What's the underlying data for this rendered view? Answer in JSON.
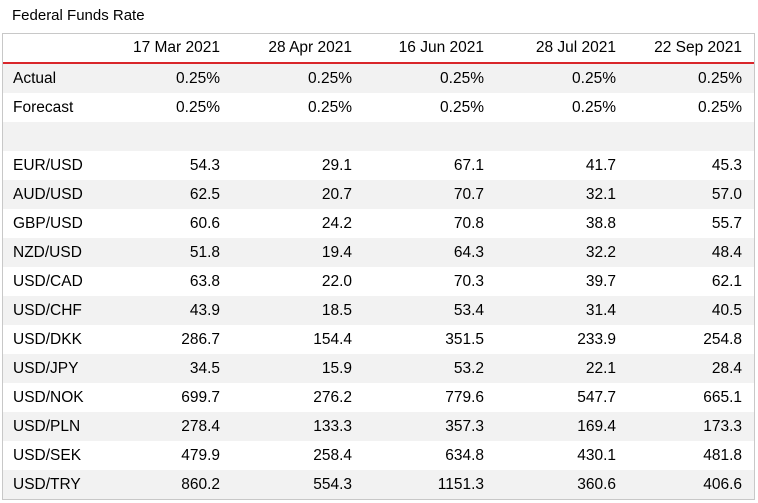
{
  "title": "Federal Funds Rate",
  "columns": [
    "17 Mar 2021",
    "28 Apr 2021",
    "16 Jun 2021",
    "28 Jul 2021",
    "22 Sep 2021"
  ],
  "rate_rows": [
    {
      "label": "Actual",
      "values": [
        "0.25%",
        "0.25%",
        "0.25%",
        "0.25%",
        "0.25%"
      ]
    },
    {
      "label": "Forecast",
      "values": [
        "0.25%",
        "0.25%",
        "0.25%",
        "0.25%",
        "0.25%"
      ]
    }
  ],
  "pair_rows": [
    {
      "label": "EUR/USD",
      "values": [
        "54.3",
        "29.1",
        "67.1",
        "41.7",
        "45.3"
      ]
    },
    {
      "label": "AUD/USD",
      "values": [
        "62.5",
        "20.7",
        "70.7",
        "32.1",
        "57.0"
      ]
    },
    {
      "label": "GBP/USD",
      "values": [
        "60.6",
        "24.2",
        "70.8",
        "38.8",
        "55.7"
      ]
    },
    {
      "label": "NZD/USD",
      "values": [
        "51.8",
        "19.4",
        "64.3",
        "32.2",
        "48.4"
      ]
    },
    {
      "label": "USD/CAD",
      "values": [
        "63.8",
        "22.0",
        "70.3",
        "39.7",
        "62.1"
      ]
    },
    {
      "label": "USD/CHF",
      "values": [
        "43.9",
        "18.5",
        "53.4",
        "31.4",
        "40.5"
      ]
    },
    {
      "label": "USD/DKK",
      "values": [
        "286.7",
        "154.4",
        "351.5",
        "233.9",
        "254.8"
      ]
    },
    {
      "label": "USD/JPY",
      "values": [
        "34.5",
        "15.9",
        "53.2",
        "22.1",
        "28.4"
      ]
    },
    {
      "label": "USD/NOK",
      "values": [
        "699.7",
        "276.2",
        "779.6",
        "547.7",
        "665.1"
      ]
    },
    {
      "label": "USD/PLN",
      "values": [
        "278.4",
        "133.3",
        "357.3",
        "169.4",
        "173.3"
      ]
    },
    {
      "label": "USD/SEK",
      "values": [
        "479.9",
        "258.4",
        "634.8",
        "430.1",
        "481.8"
      ]
    },
    {
      "label": "USD/TRY",
      "values": [
        "860.2",
        "554.3",
        "1151.3",
        "360.6",
        "406.6"
      ]
    }
  ],
  "colors": {
    "header_rule": "#d9262b",
    "stripe": "#f2f2f2"
  }
}
